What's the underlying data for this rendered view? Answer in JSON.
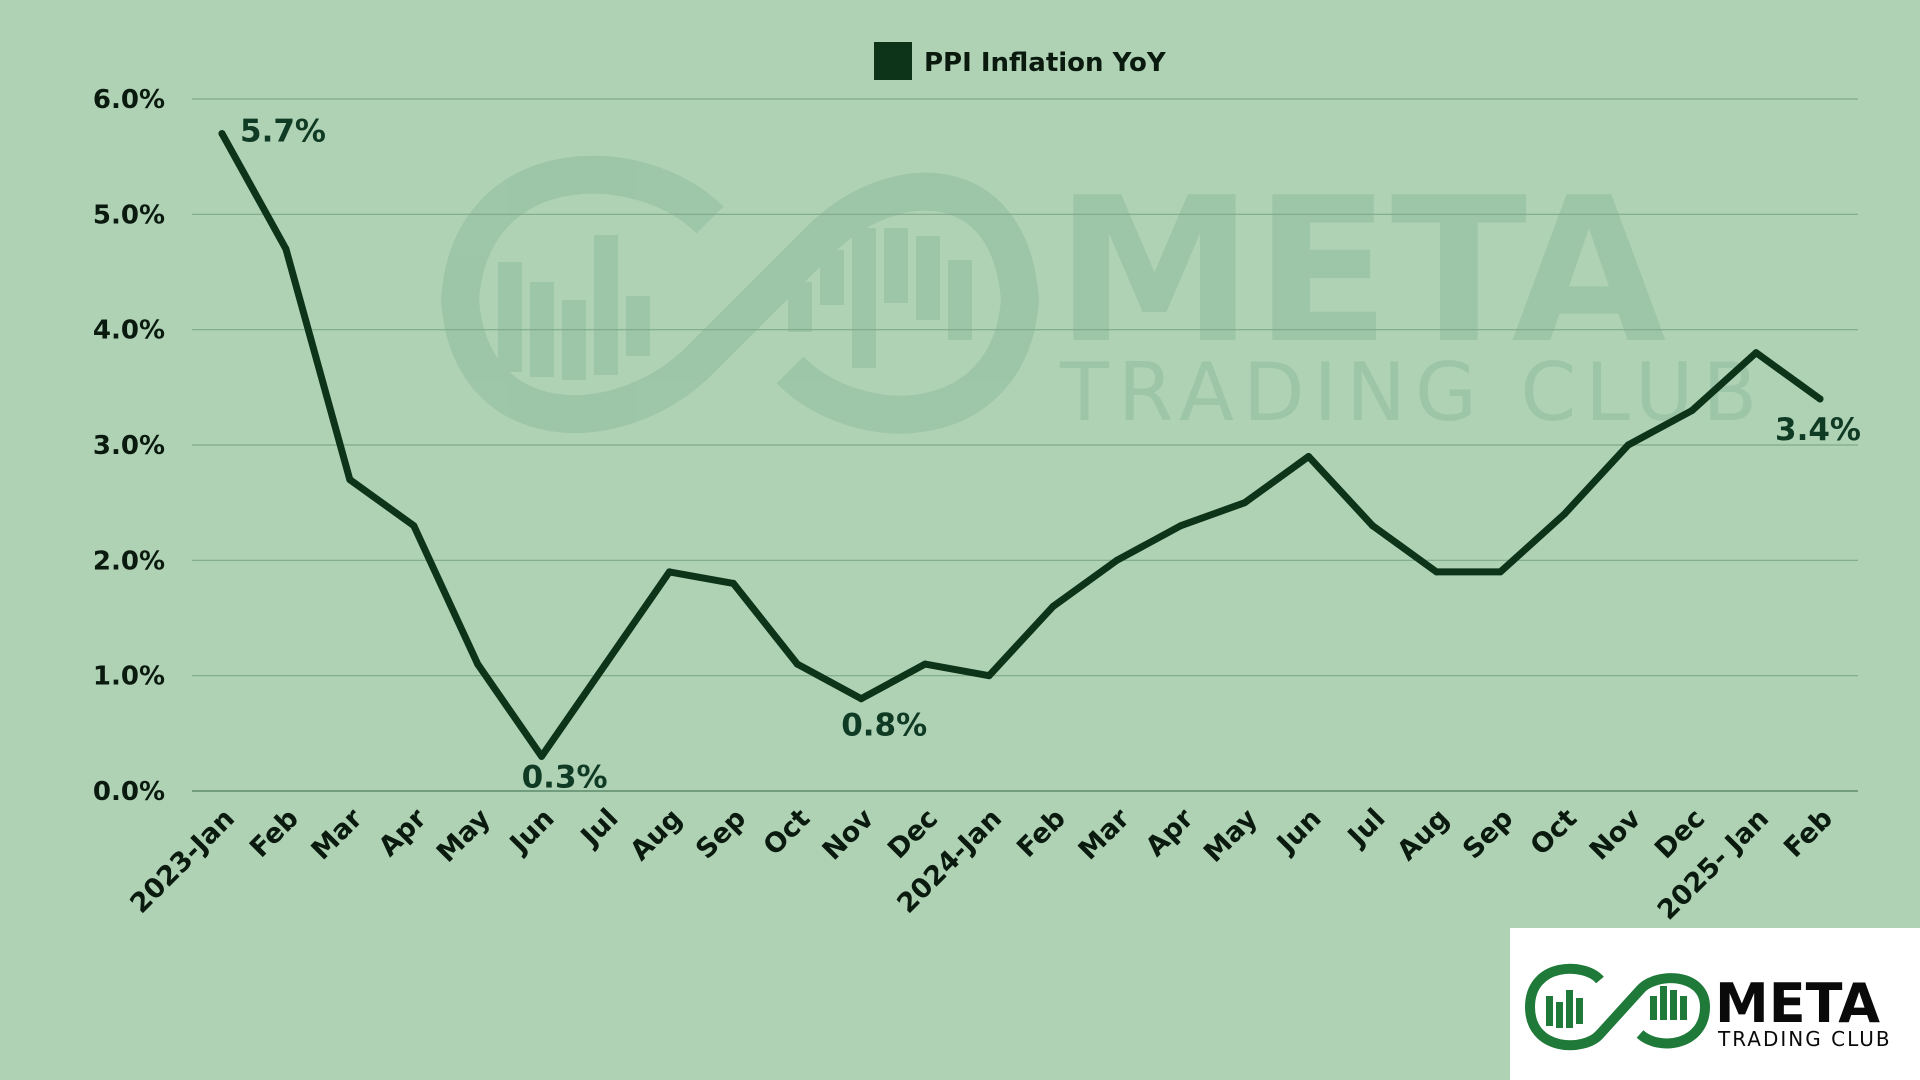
{
  "legend": {
    "label": "PPI Inflation YoY"
  },
  "watermark": {
    "line1": "META",
    "line2": "TRADING CLUB"
  },
  "logo": {
    "line1": "META",
    "line2": "TRADING CLUB"
  },
  "colors": {
    "background": "#afd2b5",
    "line": "#0d3318",
    "grid": "#7fa88a",
    "watermark": "#8fbb9c",
    "logo_green": "#1f7a3a",
    "logo_box": "#ffffff",
    "logo_text": "#0a0a0a"
  },
  "chart_data": {
    "type": "line",
    "categories": [
      "2023-Jan",
      "Feb",
      "Mar",
      "Apr",
      "May",
      "Jun",
      "Jul",
      "Aug",
      "Sep",
      "Oct",
      "Nov",
      "Dec",
      "2024-Jan",
      "Feb",
      "Mar",
      "Apr",
      "May",
      "Jun",
      "Jul",
      "Aug",
      "Sep",
      "Oct",
      "Nov",
      "Dec",
      "2025- Jan",
      "Feb"
    ],
    "series": [
      {
        "name": "PPI Inflation YoY",
        "values": [
          5.7,
          4.7,
          2.7,
          2.3,
          1.1,
          0.3,
          1.1,
          1.9,
          1.8,
          1.1,
          0.8,
          1.1,
          1.0,
          1.6,
          2.0,
          2.3,
          2.5,
          2.9,
          2.3,
          1.9,
          1.9,
          2.4,
          3.0,
          3.3,
          3.8,
          3.4
        ]
      }
    ],
    "y_ticks": [
      "0.0%",
      "1.0%",
      "2.0%",
      "3.0%",
      "4.0%",
      "5.0%",
      "6.0%"
    ],
    "ylim": [
      0,
      6
    ],
    "grid": true,
    "legend_position": "top-center",
    "annotations": [
      {
        "index": 0,
        "text": "5.7%"
      },
      {
        "index": 5,
        "text": "0.3%"
      },
      {
        "index": 10,
        "text": "0.8%"
      },
      {
        "index": 25,
        "text": "3.4%"
      }
    ]
  }
}
